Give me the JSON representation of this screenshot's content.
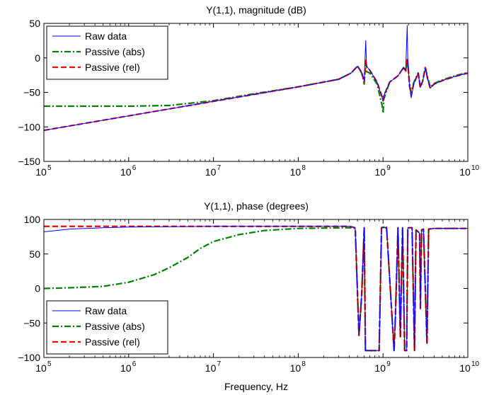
{
  "chart_data": [
    {
      "type": "line",
      "title": "Y(1,1), magnitude (dB)",
      "xlabel": "",
      "ylabel": "",
      "xscale": "log",
      "xlim": [
        100000,
        10000000000
      ],
      "ylim": [
        -150,
        50
      ],
      "xticks": [
        100000,
        1000000,
        10000000,
        100000000,
        1000000000,
        10000000000
      ],
      "xtick_labels": [
        {
          "base": "10",
          "exp": "5"
        },
        {
          "base": "10",
          "exp": "6"
        },
        {
          "base": "10",
          "exp": "7"
        },
        {
          "base": "10",
          "exp": "8"
        },
        {
          "base": "10",
          "exp": "9"
        },
        {
          "base": "10",
          "exp": "10"
        }
      ],
      "yticks": [
        -150,
        -100,
        -50,
        0,
        50
      ],
      "ytick_labels": [
        "−150",
        "−100",
        "−50",
        "0",
        "50"
      ],
      "legend": {
        "position": "top-left",
        "entries": [
          "Raw data",
          "Passive (abs)",
          "Passive (rel)"
        ]
      },
      "series": [
        {
          "name": "Raw data",
          "color": "#0000ff",
          "style": "solid",
          "points": [
            [
              100000,
              -105
            ],
            [
              1000000,
              -84
            ],
            [
              10000000,
              -63
            ],
            [
              100000000,
              -42
            ],
            [
              300000000,
              -31
            ],
            [
              420000000,
              -22
            ],
            [
              500000000,
              -12
            ],
            [
              560000000,
              -21
            ],
            [
              600000000,
              -33
            ],
            [
              625000000,
              25
            ],
            [
              640000000,
              -12
            ],
            [
              700000000,
              -18
            ],
            [
              850000000,
              -35
            ],
            [
              980000000,
              -58
            ],
            [
              1000000000,
              -63
            ],
            [
              1020000000,
              -55
            ],
            [
              1200000000,
              -35
            ],
            [
              1500000000,
              -26
            ],
            [
              1750000000,
              -14
            ],
            [
              1850000000,
              -18
            ],
            [
              1930000000,
              47
            ],
            [
              1960000000,
              -5
            ],
            [
              2050000000,
              -40
            ],
            [
              2150000000,
              -58
            ],
            [
              2300000000,
              -38
            ],
            [
              2600000000,
              -22
            ],
            [
              2750000000,
              -43
            ],
            [
              2950000000,
              -33
            ],
            [
              3150000000,
              -15
            ],
            [
              3350000000,
              -30
            ],
            [
              3600000000,
              -44
            ],
            [
              4000000000,
              -38
            ],
            [
              5000000000,
              -33
            ],
            [
              7000000000,
              -27
            ],
            [
              10000000000,
              -22
            ]
          ]
        },
        {
          "name": "Passive (abs)",
          "color": "#008000",
          "style": "dash-dot",
          "points": [
            [
              100000,
              -70
            ],
            [
              1000000,
              -70
            ],
            [
              3000000,
              -69
            ],
            [
              10000000,
              -62
            ],
            [
              30000000,
              -52
            ],
            [
              100000000,
              -42
            ],
            [
              300000000,
              -31
            ],
            [
              420000000,
              -22
            ],
            [
              500000000,
              -12
            ],
            [
              560000000,
              -22
            ],
            [
              600000000,
              -38
            ],
            [
              625000000,
              -4
            ],
            [
              640000000,
              -20
            ],
            [
              700000000,
              -22
            ],
            [
              850000000,
              -38
            ],
            [
              980000000,
              -70
            ],
            [
              1000000000,
              -80
            ],
            [
              1020000000,
              -60
            ],
            [
              1200000000,
              -35
            ],
            [
              1500000000,
              -26
            ],
            [
              1750000000,
              -14
            ],
            [
              1850000000,
              -20
            ],
            [
              1930000000,
              -3
            ],
            [
              1960000000,
              -8
            ],
            [
              2050000000,
              -36
            ],
            [
              2150000000,
              -50
            ],
            [
              2300000000,
              -36
            ],
            [
              2600000000,
              -22
            ],
            [
              2750000000,
              -41
            ],
            [
              2950000000,
              -32
            ],
            [
              3150000000,
              -13
            ],
            [
              3350000000,
              -28
            ],
            [
              3600000000,
              -42
            ],
            [
              4000000000,
              -37
            ],
            [
              5000000000,
              -32
            ],
            [
              7000000000,
              -26
            ],
            [
              10000000000,
              -21
            ]
          ]
        },
        {
          "name": "Passive (rel)",
          "color": "#ff0000",
          "style": "dashed",
          "points": [
            [
              100000,
              -105
            ],
            [
              1000000,
              -84
            ],
            [
              10000000,
              -63
            ],
            [
              100000000,
              -42
            ],
            [
              300000000,
              -31
            ],
            [
              420000000,
              -22
            ],
            [
              500000000,
              -12
            ],
            [
              560000000,
              -21
            ],
            [
              600000000,
              -35
            ],
            [
              625000000,
              -2
            ],
            [
              640000000,
              -13
            ],
            [
              700000000,
              -18
            ],
            [
              850000000,
              -35
            ],
            [
              980000000,
              -57
            ],
            [
              1000000000,
              -62
            ],
            [
              1020000000,
              -55
            ],
            [
              1200000000,
              -35
            ],
            [
              1500000000,
              -26
            ],
            [
              1750000000,
              -14
            ],
            [
              1850000000,
              -19
            ],
            [
              1930000000,
              0
            ],
            [
              1960000000,
              -6
            ],
            [
              2050000000,
              -40
            ],
            [
              2150000000,
              -54
            ],
            [
              2300000000,
              -38
            ],
            [
              2600000000,
              -22
            ],
            [
              2750000000,
              -43
            ],
            [
              2950000000,
              -33
            ],
            [
              3150000000,
              -14
            ],
            [
              3350000000,
              -30
            ],
            [
              3600000000,
              -44
            ],
            [
              4000000000,
              -38
            ],
            [
              5000000000,
              -33
            ],
            [
              7000000000,
              -27
            ],
            [
              10000000000,
              -22
            ]
          ]
        }
      ]
    },
    {
      "type": "line",
      "title": "Y(1,1), phase (degrees)",
      "xlabel": "Frequency, Hz",
      "ylabel": "",
      "xscale": "log",
      "xlim": [
        100000,
        10000000000
      ],
      "ylim": [
        -100,
        100
      ],
      "xticks": [
        100000,
        1000000,
        10000000,
        100000000,
        1000000000,
        10000000000
      ],
      "xtick_labels": [
        {
          "base": "10",
          "exp": "5"
        },
        {
          "base": "10",
          "exp": "6"
        },
        {
          "base": "10",
          "exp": "7"
        },
        {
          "base": "10",
          "exp": "8"
        },
        {
          "base": "10",
          "exp": "9"
        },
        {
          "base": "10",
          "exp": "10"
        }
      ],
      "yticks": [
        -100,
        -50,
        0,
        50,
        100
      ],
      "ytick_labels": [
        "−100",
        "−50",
        "0",
        "50",
        "100"
      ],
      "legend": {
        "position": "bottom-left",
        "entries": [
          "Raw data",
          "Passive (abs)",
          "Passive (rel)"
        ]
      },
      "series": [
        {
          "name": "Raw data",
          "color": "#0000ff",
          "style": "solid",
          "points": [
            [
              100000,
              82
            ],
            [
              200000,
              86
            ],
            [
              500000,
              88
            ],
            [
              1000000,
              89
            ],
            [
              10000000,
              90
            ],
            [
              100000000,
              90
            ],
            [
              400000000,
              90
            ],
            [
              470000000,
              88
            ],
            [
              520000000,
              -68
            ],
            [
              560000000,
              -10
            ],
            [
              600000000,
              88
            ],
            [
              620000000,
              -90
            ],
            [
              900000000,
              -90
            ],
            [
              960000000,
              88
            ],
            [
              1100000000,
              88
            ],
            [
              1350000000,
              -90
            ],
            [
              1400000000,
              -40
            ],
            [
              1500000000,
              88
            ],
            [
              1600000000,
              -70
            ],
            [
              1700000000,
              88
            ],
            [
              1800000000,
              -90
            ],
            [
              1900000000,
              -90
            ],
            [
              1960000000,
              88
            ],
            [
              2200000000,
              88
            ],
            [
              2350000000,
              -90
            ],
            [
              2450000000,
              85
            ],
            [
              2700000000,
              80
            ],
            [
              2760000000,
              -30
            ],
            [
              2850000000,
              85
            ],
            [
              3000000000,
              86
            ],
            [
              3300000000,
              -80
            ],
            [
              3450000000,
              86
            ],
            [
              4000000000,
              87
            ],
            [
              10000000000,
              87
            ]
          ]
        },
        {
          "name": "Passive (abs)",
          "color": "#008000",
          "style": "dash-dot",
          "points": [
            [
              100000,
              0
            ],
            [
              200000,
              1
            ],
            [
              500000,
              3
            ],
            [
              1000000,
              9
            ],
            [
              2000000,
              20
            ],
            [
              3000000,
              30
            ],
            [
              5000000,
              45
            ],
            [
              7000000,
              58
            ],
            [
              10000000,
              68
            ],
            [
              20000000,
              78
            ],
            [
              40000000,
              84
            ],
            [
              100000000,
              87
            ],
            [
              400000000,
              88
            ],
            [
              470000000,
              87
            ],
            [
              520000000,
              -68
            ],
            [
              560000000,
              -10
            ],
            [
              600000000,
              88
            ],
            [
              620000000,
              -90
            ],
            [
              900000000,
              -90
            ],
            [
              960000000,
              88
            ],
            [
              1100000000,
              90
            ],
            [
              1350000000,
              -90
            ],
            [
              1400000000,
              -40
            ],
            [
              1500000000,
              88
            ],
            [
              1600000000,
              -70
            ],
            [
              1700000000,
              88
            ],
            [
              1800000000,
              -90
            ],
            [
              1900000000,
              -90
            ],
            [
              1960000000,
              88
            ],
            [
              2200000000,
              88
            ],
            [
              2350000000,
              -90
            ],
            [
              2450000000,
              85
            ],
            [
              2700000000,
              80
            ],
            [
              2760000000,
              -15
            ],
            [
              2850000000,
              85
            ],
            [
              3000000000,
              86
            ],
            [
              3300000000,
              -80
            ],
            [
              3450000000,
              86
            ],
            [
              4000000000,
              87
            ],
            [
              10000000000,
              87
            ]
          ]
        },
        {
          "name": "Passive (rel)",
          "color": "#ff0000",
          "style": "dashed",
          "points": [
            [
              100000,
              90
            ],
            [
              1000000,
              90
            ],
            [
              10000000,
              90
            ],
            [
              100000000,
              90
            ],
            [
              400000000,
              90
            ],
            [
              470000000,
              88
            ],
            [
              520000000,
              -68
            ],
            [
              560000000,
              -10
            ],
            [
              600000000,
              88
            ],
            [
              620000000,
              -90
            ],
            [
              900000000,
              -90
            ],
            [
              960000000,
              88
            ],
            [
              1100000000,
              88
            ],
            [
              1350000000,
              -90
            ],
            [
              1400000000,
              -40
            ],
            [
              1500000000,
              88
            ],
            [
              1600000000,
              -70
            ],
            [
              1700000000,
              88
            ],
            [
              1800000000,
              -90
            ],
            [
              1900000000,
              -90
            ],
            [
              1960000000,
              88
            ],
            [
              2200000000,
              88
            ],
            [
              2350000000,
              -90
            ],
            [
              2450000000,
              85
            ],
            [
              2700000000,
              80
            ],
            [
              2760000000,
              -30
            ],
            [
              2850000000,
              85
            ],
            [
              3000000000,
              86
            ],
            [
              3300000000,
              -80
            ],
            [
              3450000000,
              86
            ],
            [
              4000000000,
              87
            ],
            [
              10000000000,
              87
            ]
          ]
        }
      ]
    }
  ]
}
